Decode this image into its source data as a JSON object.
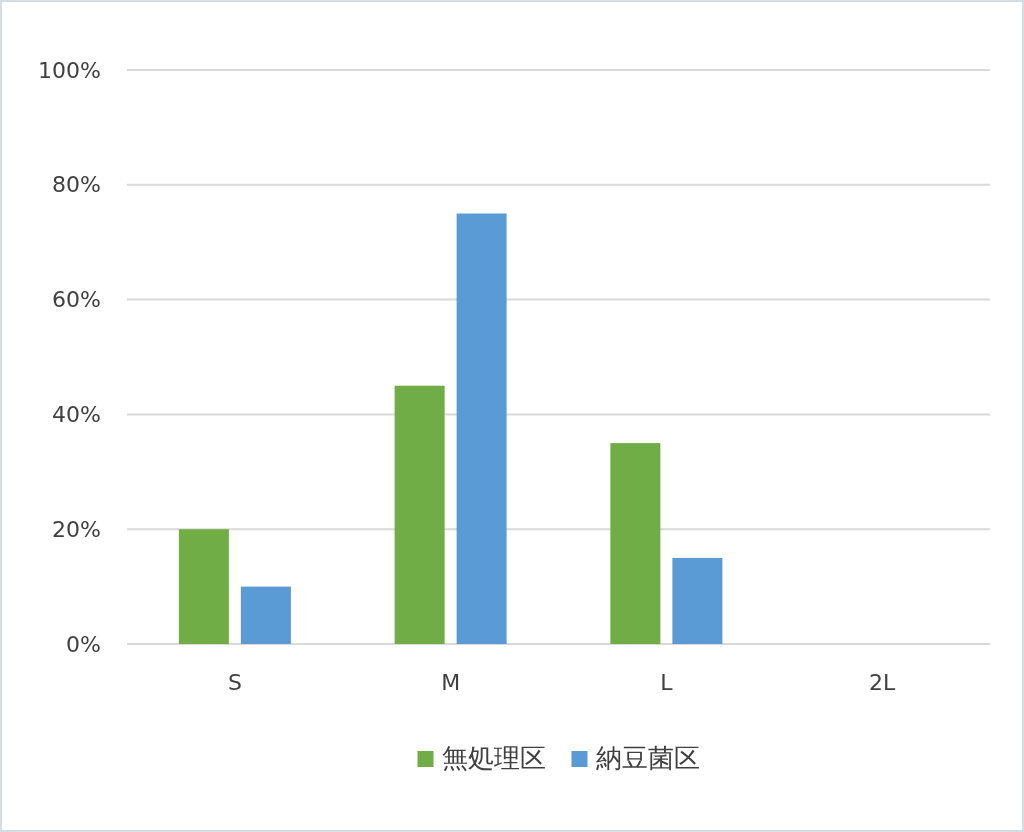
{
  "chart_data": {
    "type": "bar",
    "categories": [
      "S",
      "M",
      "L",
      "2L"
    ],
    "series": [
      {
        "name": "無処理区",
        "color": "#70ad47",
        "values": [
          20,
          45,
          35,
          0
        ]
      },
      {
        "name": "納豆菌区",
        "color": "#5b9bd5",
        "values": [
          10,
          75,
          15,
          0
        ]
      }
    ],
    "ylim": [
      0,
      100
    ],
    "yticks": [
      {
        "value": 0,
        "label": "0%"
      },
      {
        "value": 20,
        "label": "20%"
      },
      {
        "value": 40,
        "label": "40%"
      },
      {
        "value": 60,
        "label": "60%"
      },
      {
        "value": 80,
        "label": "80%"
      },
      {
        "value": 100,
        "label": "100%"
      }
    ],
    "grid": "y",
    "legend": "bottom"
  }
}
